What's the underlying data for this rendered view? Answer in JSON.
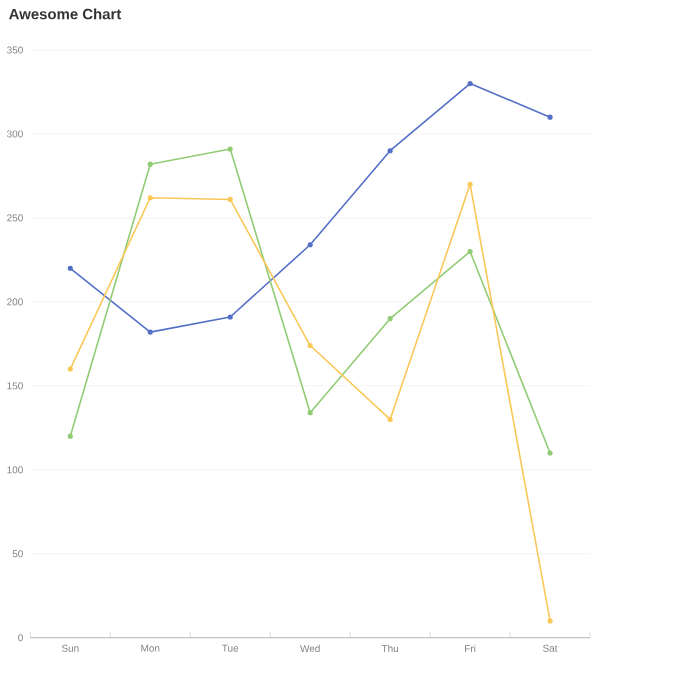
{
  "chart_data": {
    "type": "line",
    "title": "Awesome Chart",
    "categories": [
      "Sun",
      "Mon",
      "Tue",
      "Wed",
      "Thu",
      "Fri",
      "Sat"
    ],
    "series": [
      {
        "color": "#5470c6",
        "values": [
          220,
          182,
          191,
          234,
          290,
          330,
          310
        ]
      },
      {
        "color": "#91cc75",
        "values": [
          120,
          282,
          291,
          134,
          190,
          230,
          110
        ]
      },
      {
        "color": "#fac858",
        "values": [
          160,
          262,
          261,
          174,
          130,
          270,
          10
        ]
      }
    ],
    "ylim": [
      0,
      350
    ],
    "yticks": [
      0,
      50,
      100,
      150,
      200,
      250,
      300,
      350
    ],
    "grid": "y",
    "marker": "circle",
    "legend": false
  }
}
